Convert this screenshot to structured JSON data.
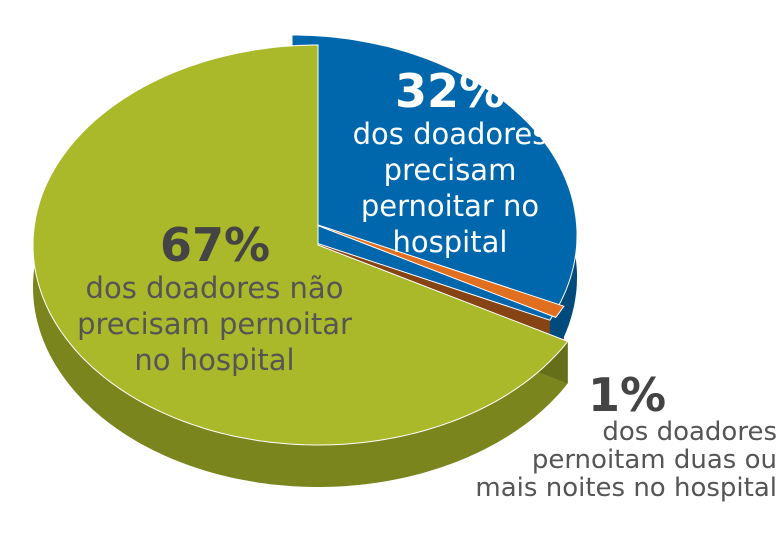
{
  "chart_data": {
    "type": "pie",
    "categories": [
      "dos doadores não precisam pernoitar no hospital",
      "dos doadores precisam pernoitar no hospital",
      "dos doadores pernoitam duas ou mais noites no hospital"
    ],
    "values": [
      67,
      32,
      1
    ],
    "value_labels": [
      "67%",
      "32%",
      "1%"
    ],
    "colors": [
      "#a9b92a",
      "#0067ad",
      "#e07020"
    ]
  }
}
